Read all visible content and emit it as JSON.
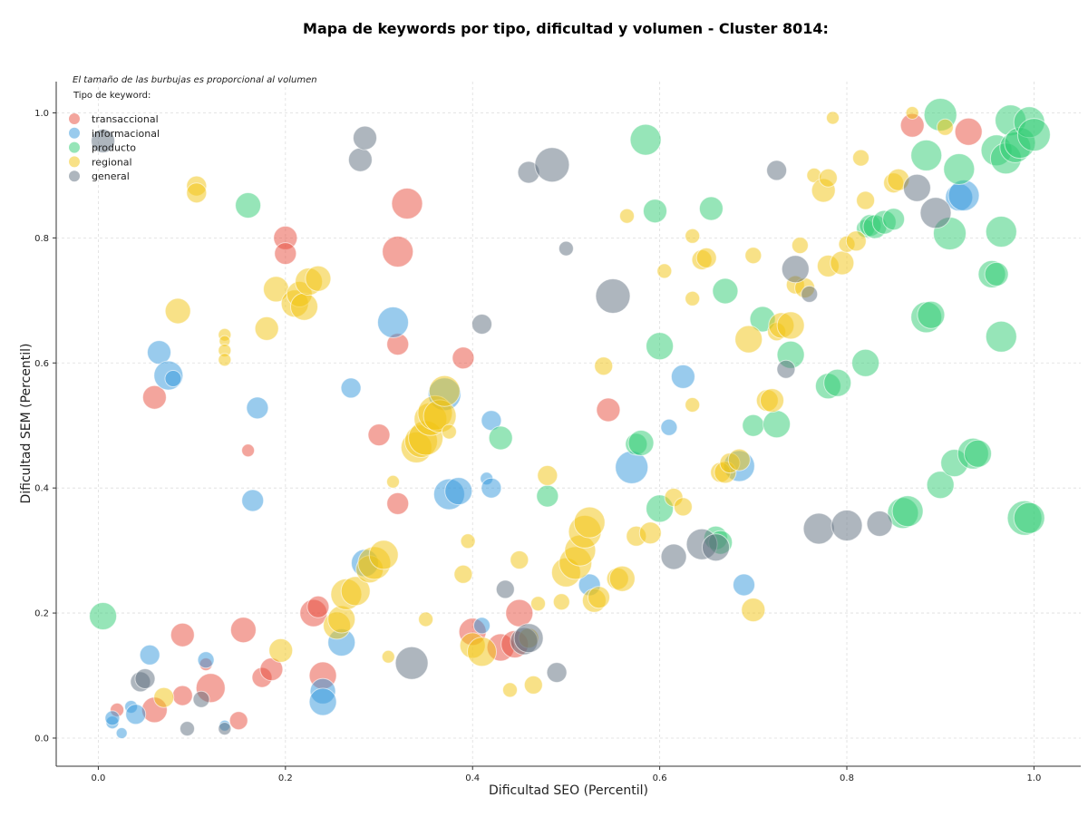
{
  "chart_data": {
    "type": "scatter",
    "title": "Mapa de keywords por tipo, dificultad y volumen - Cluster 8014:",
    "xlabel": "Dificultad SEO (Percentil)",
    "ylabel": "Dificultad SEM (Percentil)",
    "note": "El tamaño de las burbujas es proporcional al volumen",
    "legend_title": "Tipo de keyword:",
    "legend_position": "top-left",
    "grid": true,
    "xlim": [
      -0.045,
      1.05
    ],
    "ylim": [
      -0.045,
      1.05
    ],
    "xticks": [
      0.0,
      0.2,
      0.4,
      0.6,
      0.8,
      1.0
    ],
    "yticks": [
      0.0,
      0.2,
      0.4,
      0.6,
      0.8,
      1.0
    ],
    "tick_labels_x": [
      "0.0",
      "0.2",
      "0.4",
      "0.6",
      "0.8",
      "1.0"
    ],
    "tick_labels_y": [
      "0.0",
      "0.2",
      "0.4",
      "0.6",
      "0.8",
      "1.0"
    ],
    "series": [
      {
        "name": "transaccional",
        "color": "#e74c3c",
        "points": [
          [
            0.02,
            0.045,
            15
          ],
          [
            0.06,
            0.045,
            28
          ],
          [
            0.09,
            0.068,
            22
          ],
          [
            0.12,
            0.08,
            32
          ],
          [
            0.09,
            0.165,
            26
          ],
          [
            0.115,
            0.118,
            14
          ],
          [
            0.15,
            0.028,
            20
          ],
          [
            0.155,
            0.173,
            28
          ],
          [
            0.175,
            0.097,
            22
          ],
          [
            0.185,
            0.11,
            25
          ],
          [
            0.23,
            0.2,
            30
          ],
          [
            0.235,
            0.21,
            24
          ],
          [
            0.24,
            0.1,
            30
          ],
          [
            0.16,
            0.46,
            14
          ],
          [
            0.06,
            0.545,
            26
          ],
          [
            0.2,
            0.8,
            26
          ],
          [
            0.2,
            0.775,
            24
          ],
          [
            0.33,
            0.855,
            34
          ],
          [
            0.32,
            0.778,
            34
          ],
          [
            0.32,
            0.63,
            24
          ],
          [
            0.3,
            0.485,
            24
          ],
          [
            0.32,
            0.375,
            24
          ],
          [
            0.39,
            0.608,
            24
          ],
          [
            0.4,
            0.17,
            30
          ],
          [
            0.43,
            0.145,
            30
          ],
          [
            0.45,
            0.2,
            30
          ],
          [
            0.445,
            0.15,
            30
          ],
          [
            0.545,
            0.525,
            26
          ],
          [
            0.87,
            0.98,
            26
          ],
          [
            0.93,
            0.97,
            30
          ]
        ]
      },
      {
        "name": "informacional",
        "color": "#3498db",
        "points": [
          [
            0.015,
            0.025,
            14
          ],
          [
            0.015,
            0.032,
            16
          ],
          [
            0.025,
            0.008,
            12
          ],
          [
            0.035,
            0.05,
            14
          ],
          [
            0.04,
            0.038,
            22
          ],
          [
            0.055,
            0.133,
            22
          ],
          [
            0.115,
            0.125,
            18
          ],
          [
            0.135,
            0.02,
            12
          ],
          [
            0.065,
            0.617,
            26
          ],
          [
            0.075,
            0.58,
            32
          ],
          [
            0.08,
            0.575,
            18
          ],
          [
            0.165,
            0.38,
            24
          ],
          [
            0.17,
            0.528,
            24
          ],
          [
            0.24,
            0.075,
            28
          ],
          [
            0.24,
            0.058,
            30
          ],
          [
            0.26,
            0.153,
            30
          ],
          [
            0.27,
            0.56,
            22
          ],
          [
            0.285,
            0.28,
            30
          ],
          [
            0.315,
            0.665,
            34
          ],
          [
            0.37,
            0.55,
            36
          ],
          [
            0.375,
            0.39,
            34
          ],
          [
            0.385,
            0.395,
            30
          ],
          [
            0.41,
            0.18,
            18
          ],
          [
            0.415,
            0.415,
            14
          ],
          [
            0.42,
            0.508,
            22
          ],
          [
            0.42,
            0.4,
            22
          ],
          [
            0.525,
            0.245,
            24
          ],
          [
            0.57,
            0.433,
            36
          ],
          [
            0.61,
            0.497,
            18
          ],
          [
            0.625,
            0.578,
            26
          ],
          [
            0.685,
            0.435,
            34
          ],
          [
            0.69,
            0.245,
            24
          ],
          [
            0.92,
            0.865,
            30
          ],
          [
            0.925,
            0.868,
            34
          ]
        ]
      },
      {
        "name": "producto",
        "color": "#2ecc71",
        "points": [
          [
            0.005,
            0.195,
            30
          ],
          [
            0.16,
            0.852,
            28
          ],
          [
            0.43,
            0.48,
            26
          ],
          [
            0.48,
            0.387,
            24
          ],
          [
            0.585,
            0.957,
            34
          ],
          [
            0.575,
            0.47,
            24
          ],
          [
            0.58,
            0.472,
            28
          ],
          [
            0.595,
            0.843,
            26
          ],
          [
            0.6,
            0.367,
            30
          ],
          [
            0.6,
            0.627,
            30
          ],
          [
            0.655,
            0.847,
            26
          ],
          [
            0.66,
            0.32,
            26
          ],
          [
            0.665,
            0.313,
            26
          ],
          [
            0.67,
            0.715,
            28
          ],
          [
            0.7,
            0.5,
            24
          ],
          [
            0.71,
            0.67,
            28
          ],
          [
            0.725,
            0.502,
            30
          ],
          [
            0.74,
            0.613,
            30
          ],
          [
            0.78,
            0.563,
            28
          ],
          [
            0.79,
            0.568,
            30
          ],
          [
            0.82,
            0.6,
            30
          ],
          [
            0.82,
            0.815,
            20
          ],
          [
            0.825,
            0.82,
            24
          ],
          [
            0.83,
            0.818,
            26
          ],
          [
            0.84,
            0.825,
            26
          ],
          [
            0.85,
            0.83,
            24
          ],
          [
            0.86,
            0.36,
            34
          ],
          [
            0.865,
            0.363,
            34
          ],
          [
            0.885,
            0.932,
            34
          ],
          [
            0.885,
            0.673,
            34
          ],
          [
            0.89,
            0.677,
            30
          ],
          [
            0.9,
            0.405,
            30
          ],
          [
            0.9,
            0.997,
            36
          ],
          [
            0.91,
            0.807,
            36
          ],
          [
            0.915,
            0.44,
            30
          ],
          [
            0.92,
            0.91,
            34
          ],
          [
            0.935,
            0.455,
            34
          ],
          [
            0.94,
            0.455,
            30
          ],
          [
            0.955,
            0.742,
            30
          ],
          [
            0.96,
            0.742,
            26
          ],
          [
            0.96,
            0.94,
            34
          ],
          [
            0.965,
            0.642,
            34
          ],
          [
            0.965,
            0.81,
            34
          ],
          [
            0.97,
            0.927,
            34
          ],
          [
            0.975,
            0.988,
            34
          ],
          [
            0.98,
            0.945,
            34
          ],
          [
            0.985,
            0.952,
            34
          ],
          [
            0.99,
            0.352,
            38
          ],
          [
            0.995,
            0.352,
            34
          ],
          [
            0.995,
            0.985,
            34
          ],
          [
            1.0,
            0.965,
            36
          ]
        ]
      },
      {
        "name": "regional",
        "color": "#f1c40f",
        "points": [
          [
            0.07,
            0.065,
            22
          ],
          [
            0.105,
            0.883,
            22
          ],
          [
            0.105,
            0.872,
            22
          ],
          [
            0.085,
            0.683,
            28
          ],
          [
            0.135,
            0.645,
            14
          ],
          [
            0.135,
            0.635,
            12
          ],
          [
            0.135,
            0.62,
            14
          ],
          [
            0.135,
            0.605,
            14
          ],
          [
            0.18,
            0.655,
            26
          ],
          [
            0.19,
            0.718,
            28
          ],
          [
            0.195,
            0.14,
            26
          ],
          [
            0.21,
            0.695,
            30
          ],
          [
            0.215,
            0.71,
            28
          ],
          [
            0.22,
            0.69,
            30
          ],
          [
            0.225,
            0.73,
            30
          ],
          [
            0.235,
            0.735,
            28
          ],
          [
            0.255,
            0.18,
            30
          ],
          [
            0.26,
            0.19,
            30
          ],
          [
            0.265,
            0.23,
            34
          ],
          [
            0.275,
            0.235,
            32
          ],
          [
            0.29,
            0.27,
            30
          ],
          [
            0.295,
            0.28,
            36
          ],
          [
            0.305,
            0.293,
            32
          ],
          [
            0.31,
            0.13,
            14
          ],
          [
            0.315,
            0.41,
            14
          ],
          [
            0.34,
            0.465,
            34
          ],
          [
            0.345,
            0.475,
            36
          ],
          [
            0.35,
            0.48,
            38
          ],
          [
            0.355,
            0.51,
            36
          ],
          [
            0.36,
            0.52,
            38
          ],
          [
            0.365,
            0.515,
            36
          ],
          [
            0.37,
            0.555,
            34
          ],
          [
            0.35,
            0.19,
            16
          ],
          [
            0.375,
            0.49,
            16
          ],
          [
            0.39,
            0.262,
            20
          ],
          [
            0.395,
            0.315,
            16
          ],
          [
            0.4,
            0.148,
            28
          ],
          [
            0.41,
            0.138,
            32
          ],
          [
            0.44,
            0.077,
            16
          ],
          [
            0.45,
            0.285,
            20
          ],
          [
            0.46,
            0.16,
            22
          ],
          [
            0.465,
            0.085,
            20
          ],
          [
            0.47,
            0.215,
            16
          ],
          [
            0.48,
            0.42,
            22
          ],
          [
            0.495,
            0.218,
            18
          ],
          [
            0.5,
            0.265,
            32
          ],
          [
            0.51,
            0.28,
            36
          ],
          [
            0.515,
            0.3,
            34
          ],
          [
            0.52,
            0.33,
            36
          ],
          [
            0.525,
            0.345,
            34
          ],
          [
            0.53,
            0.22,
            26
          ],
          [
            0.535,
            0.225,
            24
          ],
          [
            0.54,
            0.595,
            20
          ],
          [
            0.555,
            0.255,
            24
          ],
          [
            0.56,
            0.255,
            28
          ],
          [
            0.565,
            0.835,
            16
          ],
          [
            0.575,
            0.323,
            22
          ],
          [
            0.59,
            0.328,
            24
          ],
          [
            0.605,
            0.747,
            16
          ],
          [
            0.615,
            0.385,
            20
          ],
          [
            0.625,
            0.37,
            20
          ],
          [
            0.635,
            0.803,
            16
          ],
          [
            0.635,
            0.703,
            16
          ],
          [
            0.635,
            0.533,
            16
          ],
          [
            0.645,
            0.765,
            22
          ],
          [
            0.65,
            0.768,
            22
          ],
          [
            0.665,
            0.425,
            22
          ],
          [
            0.67,
            0.425,
            24
          ],
          [
            0.675,
            0.44,
            22
          ],
          [
            0.685,
            0.445,
            24
          ],
          [
            0.695,
            0.638,
            30
          ],
          [
            0.7,
            0.772,
            18
          ],
          [
            0.7,
            0.205,
            26
          ],
          [
            0.715,
            0.54,
            24
          ],
          [
            0.72,
            0.54,
            26
          ],
          [
            0.725,
            0.65,
            20
          ],
          [
            0.73,
            0.66,
            28
          ],
          [
            0.74,
            0.66,
            30
          ],
          [
            0.745,
            0.725,
            20
          ],
          [
            0.75,
            0.788,
            18
          ],
          [
            0.755,
            0.72,
            22
          ],
          [
            0.765,
            0.9,
            16
          ],
          [
            0.775,
            0.876,
            26
          ],
          [
            0.78,
            0.896,
            20
          ],
          [
            0.78,
            0.755,
            24
          ],
          [
            0.785,
            0.992,
            14
          ],
          [
            0.795,
            0.76,
            26
          ],
          [
            0.8,
            0.79,
            18
          ],
          [
            0.81,
            0.795,
            22
          ],
          [
            0.815,
            0.928,
            18
          ],
          [
            0.82,
            0.86,
            20
          ],
          [
            0.85,
            0.888,
            22
          ],
          [
            0.855,
            0.893,
            24
          ],
          [
            0.87,
            1.0,
            14
          ],
          [
            0.905,
            0.977,
            18
          ]
        ]
      },
      {
        "name": "general",
        "color": "#5d6d7e",
        "points": [
          [
            0.005,
            0.955,
            26
          ],
          [
            0.045,
            0.09,
            22
          ],
          [
            0.05,
            0.095,
            22
          ],
          [
            0.095,
            0.015,
            16
          ],
          [
            0.11,
            0.062,
            18
          ],
          [
            0.135,
            0.015,
            14
          ],
          [
            0.28,
            0.925,
            26
          ],
          [
            0.285,
            0.96,
            26
          ],
          [
            0.335,
            0.12,
            36
          ],
          [
            0.41,
            0.662,
            22
          ],
          [
            0.435,
            0.238,
            20
          ],
          [
            0.455,
            0.155,
            30
          ],
          [
            0.46,
            0.16,
            32
          ],
          [
            0.46,
            0.905,
            24
          ],
          [
            0.485,
            0.917,
            38
          ],
          [
            0.49,
            0.105,
            22
          ],
          [
            0.5,
            0.783,
            16
          ],
          [
            0.55,
            0.707,
            38
          ],
          [
            0.615,
            0.29,
            28
          ],
          [
            0.645,
            0.31,
            34
          ],
          [
            0.66,
            0.305,
            30
          ],
          [
            0.725,
            0.908,
            22
          ],
          [
            0.735,
            0.59,
            20
          ],
          [
            0.745,
            0.75,
            30
          ],
          [
            0.76,
            0.71,
            18
          ],
          [
            0.77,
            0.335,
            34
          ],
          [
            0.8,
            0.34,
            34
          ],
          [
            0.835,
            0.343,
            28
          ],
          [
            0.875,
            0.88,
            30
          ],
          [
            0.895,
            0.84,
            34
          ]
        ]
      }
    ]
  }
}
